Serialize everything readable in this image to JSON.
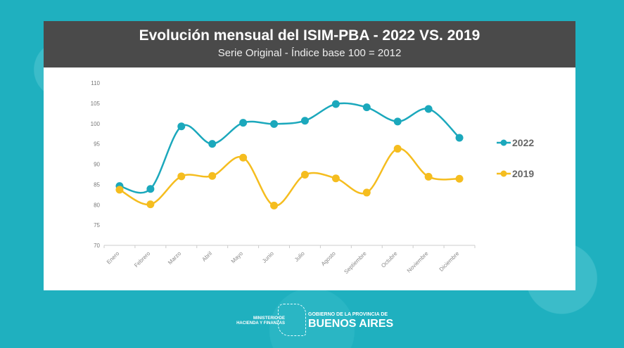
{
  "header": {
    "title": "Evolución mensual del ISIM-PBA - 2022 VS. 2019",
    "subtitle": "Serie Original - Índice base 100 = 2012"
  },
  "footer": {
    "ministry_line1": "MINISTERIO DE",
    "ministry_line2": "HACIENDA Y FINANZAS",
    "gov_line": "GOBIERNO DE LA PROVINCIA DE",
    "province": "BUENOS AIRES"
  },
  "chart_data": {
    "type": "line",
    "title": "Evolución mensual del ISIM-PBA - 2022 VS. 2019",
    "subtitle": "Serie Original - Índice base 100 = 2012",
    "categories": [
      "Enero",
      "Febrero",
      "Marzo",
      "Abril",
      "Mayo",
      "Junio",
      "Julio",
      "Agosto",
      "Septiembre",
      "Octubre",
      "Noviembre",
      "Diciembre"
    ],
    "yticks": [
      "70",
      "75",
      "80",
      "85",
      "90",
      "95",
      "100",
      "105",
      "110"
    ],
    "ylim": [
      70,
      110
    ],
    "legend_placement": "right",
    "series": [
      {
        "name": "2022",
        "color": "#1ba8bc",
        "values": [
          84.6,
          83.9,
          99.3,
          95.0,
          100.2,
          99.9,
          100.7,
          104.8,
          104.0,
          100.5,
          103.6,
          96.5
        ]
      },
      {
        "name": "2019",
        "color": "#f5bd1f",
        "values": [
          83.7,
          80.1,
          87.0,
          87.1,
          91.6,
          79.8,
          87.4,
          86.5,
          83.0,
          93.8,
          86.9,
          86.4
        ]
      }
    ]
  }
}
